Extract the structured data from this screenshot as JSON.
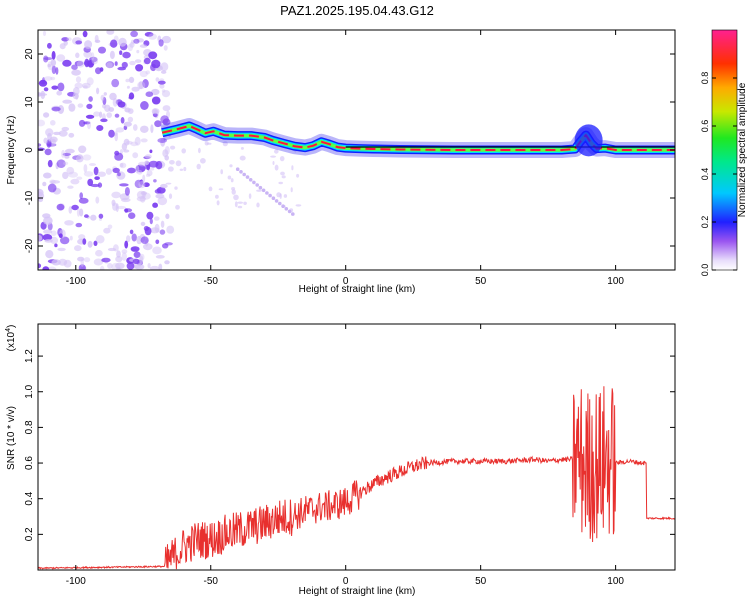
{
  "title": "PAZ1.2025.195.04.43.G12",
  "colors": {
    "snr_line": "#e8302e",
    "trace_core": "#ff1040",
    "noise_purple": "#7a3cf0",
    "noise_light": "#d4c2f6"
  },
  "chart_data": [
    {
      "type": "heatmap",
      "title": "PAZ1.2025.195.04.43.G12",
      "xlabel": "Height of straight line (km)",
      "ylabel": "Frequency (Hz)",
      "xlim": [
        -114,
        122
      ],
      "ylim": [
        -25,
        25
      ],
      "x_ticks": [
        -100,
        -50,
        0,
        50,
        100
      ],
      "y_ticks": [
        -20,
        -10,
        0,
        10,
        20
      ],
      "colorbar": {
        "label": "Normalized spectral amplitude",
        "range": [
          0,
          1
        ],
        "ticks": [
          0.0,
          0.2,
          0.4,
          0.6,
          0.8
        ],
        "tick_labels": [
          "0.0",
          "0.2",
          "0.4",
          "0.6",
          "0.8"
        ]
      },
      "frequency_trace": {
        "x": [
          -68,
          -62,
          -58,
          -55,
          -52,
          -49,
          -45,
          -40,
          -35,
          -30,
          -27,
          -23,
          -19,
          -15,
          -12,
          -9,
          -6,
          -3,
          0,
          5,
          10,
          20,
          40,
          60,
          80,
          85,
          87,
          89,
          91,
          93,
          96,
          100,
          110,
          122
        ],
        "y": [
          3.6,
          4.4,
          5.0,
          4.3,
          3.5,
          3.9,
          3.1,
          3.0,
          3.0,
          2.6,
          2.0,
          1.4,
          0.8,
          0.5,
          0.9,
          1.7,
          1.2,
          0.6,
          0.4,
          0.3,
          0.2,
          0.1,
          0.0,
          0.0,
          0.0,
          0.2,
          1.8,
          3.1,
          1.4,
          0.3,
          0.4,
          0.0,
          0.0,
          0.0
        ]
      },
      "noise_region_x": [
        -114,
        -67
      ]
    },
    {
      "type": "line",
      "xlabel": "Height of straight line (km)",
      "ylabel": "SNR (10 * v/v)",
      "scale_label": "(x10",
      "scale_exp": "4",
      "xlim": [
        -114,
        122
      ],
      "ylim": [
        0,
        1.38
      ],
      "x_ticks": [
        -100,
        -50,
        0,
        50,
        100
      ],
      "y_ticks": [
        0.2,
        0.4,
        0.6,
        0.8,
        1.0,
        1.2
      ],
      "y_tick_labels": [
        "0.2",
        "0.4",
        "0.6",
        "0.8",
        "1.0",
        "1.2"
      ],
      "series": [
        {
          "x": [
            -114,
            -67,
            -65,
            -60,
            -55,
            -50,
            -45,
            -40,
            -35,
            -30,
            -25,
            -20,
            -15,
            -10,
            -5,
            0,
            5,
            10,
            15,
            20,
            25,
            30,
            40,
            50,
            60,
            70,
            75,
            80,
            84,
            86,
            88,
            90,
            92,
            94,
            96,
            98,
            100,
            105,
            110,
            111,
            112,
            122
          ],
          "y": [
            0.01,
            0.02,
            0.06,
            0.13,
            0.17,
            0.17,
            0.2,
            0.22,
            0.24,
            0.26,
            0.29,
            0.3,
            0.33,
            0.35,
            0.36,
            0.38,
            0.43,
            0.48,
            0.52,
            0.55,
            0.58,
            0.6,
            0.61,
            0.61,
            0.61,
            0.62,
            0.61,
            0.62,
            0.62,
            0.63,
            0.6,
            0.58,
            0.6,
            0.59,
            0.61,
            0.62,
            0.6,
            0.61,
            0.6,
            0.6,
            0.29,
            0.29
          ],
          "noise": [
            [
              -67,
              -20,
              0.11
            ],
            [
              -20,
              5,
              0.09
            ],
            [
              5,
              30,
              0.04
            ],
            [
              30,
              84,
              0.015
            ],
            [
              70,
              80,
              0.04
            ],
            [
              84,
              100,
              0.45
            ],
            [
              100,
              111,
              0.012
            ],
            [
              112,
              122,
              0.005
            ]
          ]
        }
      ]
    }
  ]
}
